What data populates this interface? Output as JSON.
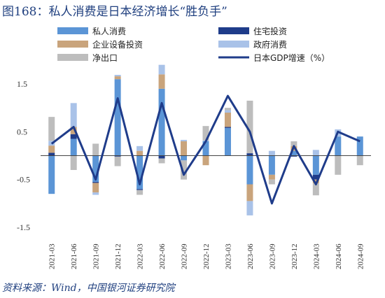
{
  "title": "图168：私人消费是日本经济增长“胜负手”",
  "source": "资料来源：Wind，中国银河证券研究院",
  "colors": {
    "private_consumption": "#5b95d6",
    "housing_investment": "#1f3c8a",
    "business_investment": "#c9a47c",
    "government_consumption": "#a9c2e8",
    "net_exports": "#bdbdbd",
    "gdp_line": "#1f3c8a"
  },
  "chart_data": {
    "type": "bar",
    "stacked": true,
    "ylim": [
      -1.5,
      1.5
    ],
    "yticks": [
      1.5,
      0.5,
      -0.5,
      -1.5
    ],
    "categories": [
      "2021-03",
      "2021-06",
      "2021-09",
      "2021-12",
      "2022-03",
      "2022-06",
      "2022-09",
      "2022-12",
      "2023-03",
      "2023-06",
      "2023-09",
      "2023-12",
      "2024-03",
      "2024-06",
      "2024-09"
    ],
    "series": [
      {
        "name": "私人消费",
        "key": "private_consumption",
        "values": [
          -0.8,
          0.35,
          -0.55,
          1.6,
          -0.7,
          1.4,
          -0.1,
          0.3,
          0.58,
          -0.6,
          -0.4,
          0.1,
          -0.4,
          0.4,
          0.4
        ]
      },
      {
        "name": "住宅投资",
        "key": "housing_investment",
        "values": [
          0.06,
          0.1,
          -0.02,
          -0.02,
          -0.02,
          -0.06,
          0.0,
          0.0,
          0.02,
          0.05,
          0.0,
          -0.02,
          -0.1,
          0.0,
          0.0
        ]
      },
      {
        "name": "企业设备投资",
        "key": "business_investment",
        "values": [
          0.15,
          0.15,
          -0.2,
          0.06,
          0.1,
          0.3,
          0.3,
          -0.2,
          0.3,
          -0.35,
          -0.1,
          0.1,
          -0.08,
          0.0,
          0.0
        ]
      },
      {
        "name": "政府消费",
        "key": "government_consumption",
        "values": [
          0.1,
          0.5,
          -0.05,
          0.03,
          0.1,
          0.2,
          0.03,
          0.02,
          0.05,
          -0.3,
          0.1,
          0.0,
          0.12,
          0.15,
          0.0
        ]
      },
      {
        "name": "净出口",
        "key": "net_exports",
        "values": [
          0.5,
          -0.3,
          0.25,
          -0.2,
          -0.1,
          -0.1,
          -0.4,
          0.3,
          0.05,
          1.1,
          -0.1,
          0.1,
          -0.25,
          -0.4,
          -0.2
        ]
      }
    ],
    "line": {
      "name": "日本GDP增速（%）",
      "key": "gdp_line",
      "values": [
        0.25,
        0.6,
        -0.5,
        1.2,
        -0.6,
        1.1,
        -0.4,
        0.3,
        1.25,
        0.5,
        -1.0,
        0.2,
        -0.6,
        0.5,
        0.3
      ]
    },
    "grid": false,
    "legend": "top"
  }
}
